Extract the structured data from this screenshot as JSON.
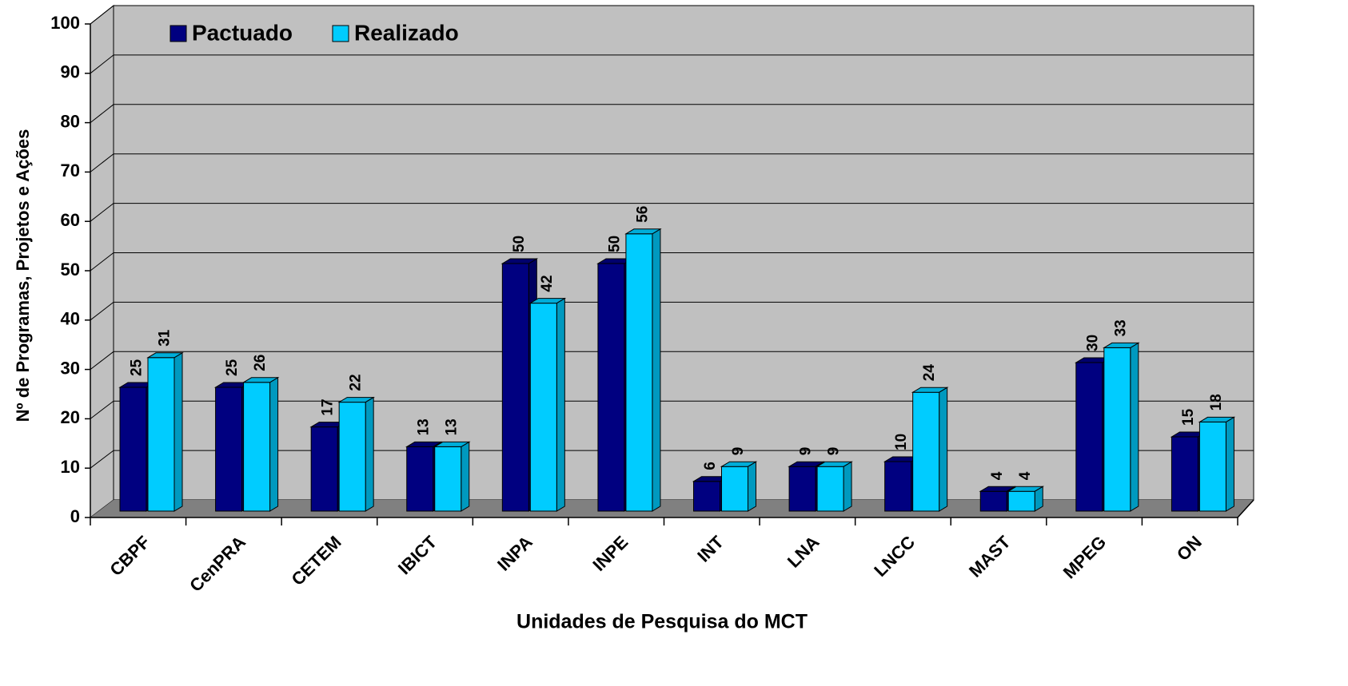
{
  "chart_data": {
    "type": "bar",
    "x_label": "Unidades de Pesquisa do MCT",
    "y_label": "Nº de Programas, Projetos e Ações",
    "categories": [
      "CBPF",
      "CenPRA",
      "CETEM",
      "IBICT",
      "INPA",
      "INPE",
      "INT",
      "LNA",
      "LNCC",
      "MAST",
      "MPEG",
      "ON"
    ],
    "series": [
      {
        "name": "Pactuado",
        "color": "#000080",
        "values": [
          25,
          25,
          17,
          13,
          50,
          50,
          6,
          9,
          10,
          4,
          30,
          15
        ]
      },
      {
        "name": "Realizado",
        "color": "#00ccff",
        "values": [
          31,
          26,
          22,
          13,
          42,
          56,
          9,
          9,
          24,
          4,
          33,
          18
        ]
      }
    ],
    "ylim": [
      0,
      100
    ],
    "yticks": [
      0,
      10,
      20,
      30,
      40,
      50,
      60,
      70,
      80,
      90,
      100
    ],
    "grid": true,
    "legend": "top-left"
  }
}
